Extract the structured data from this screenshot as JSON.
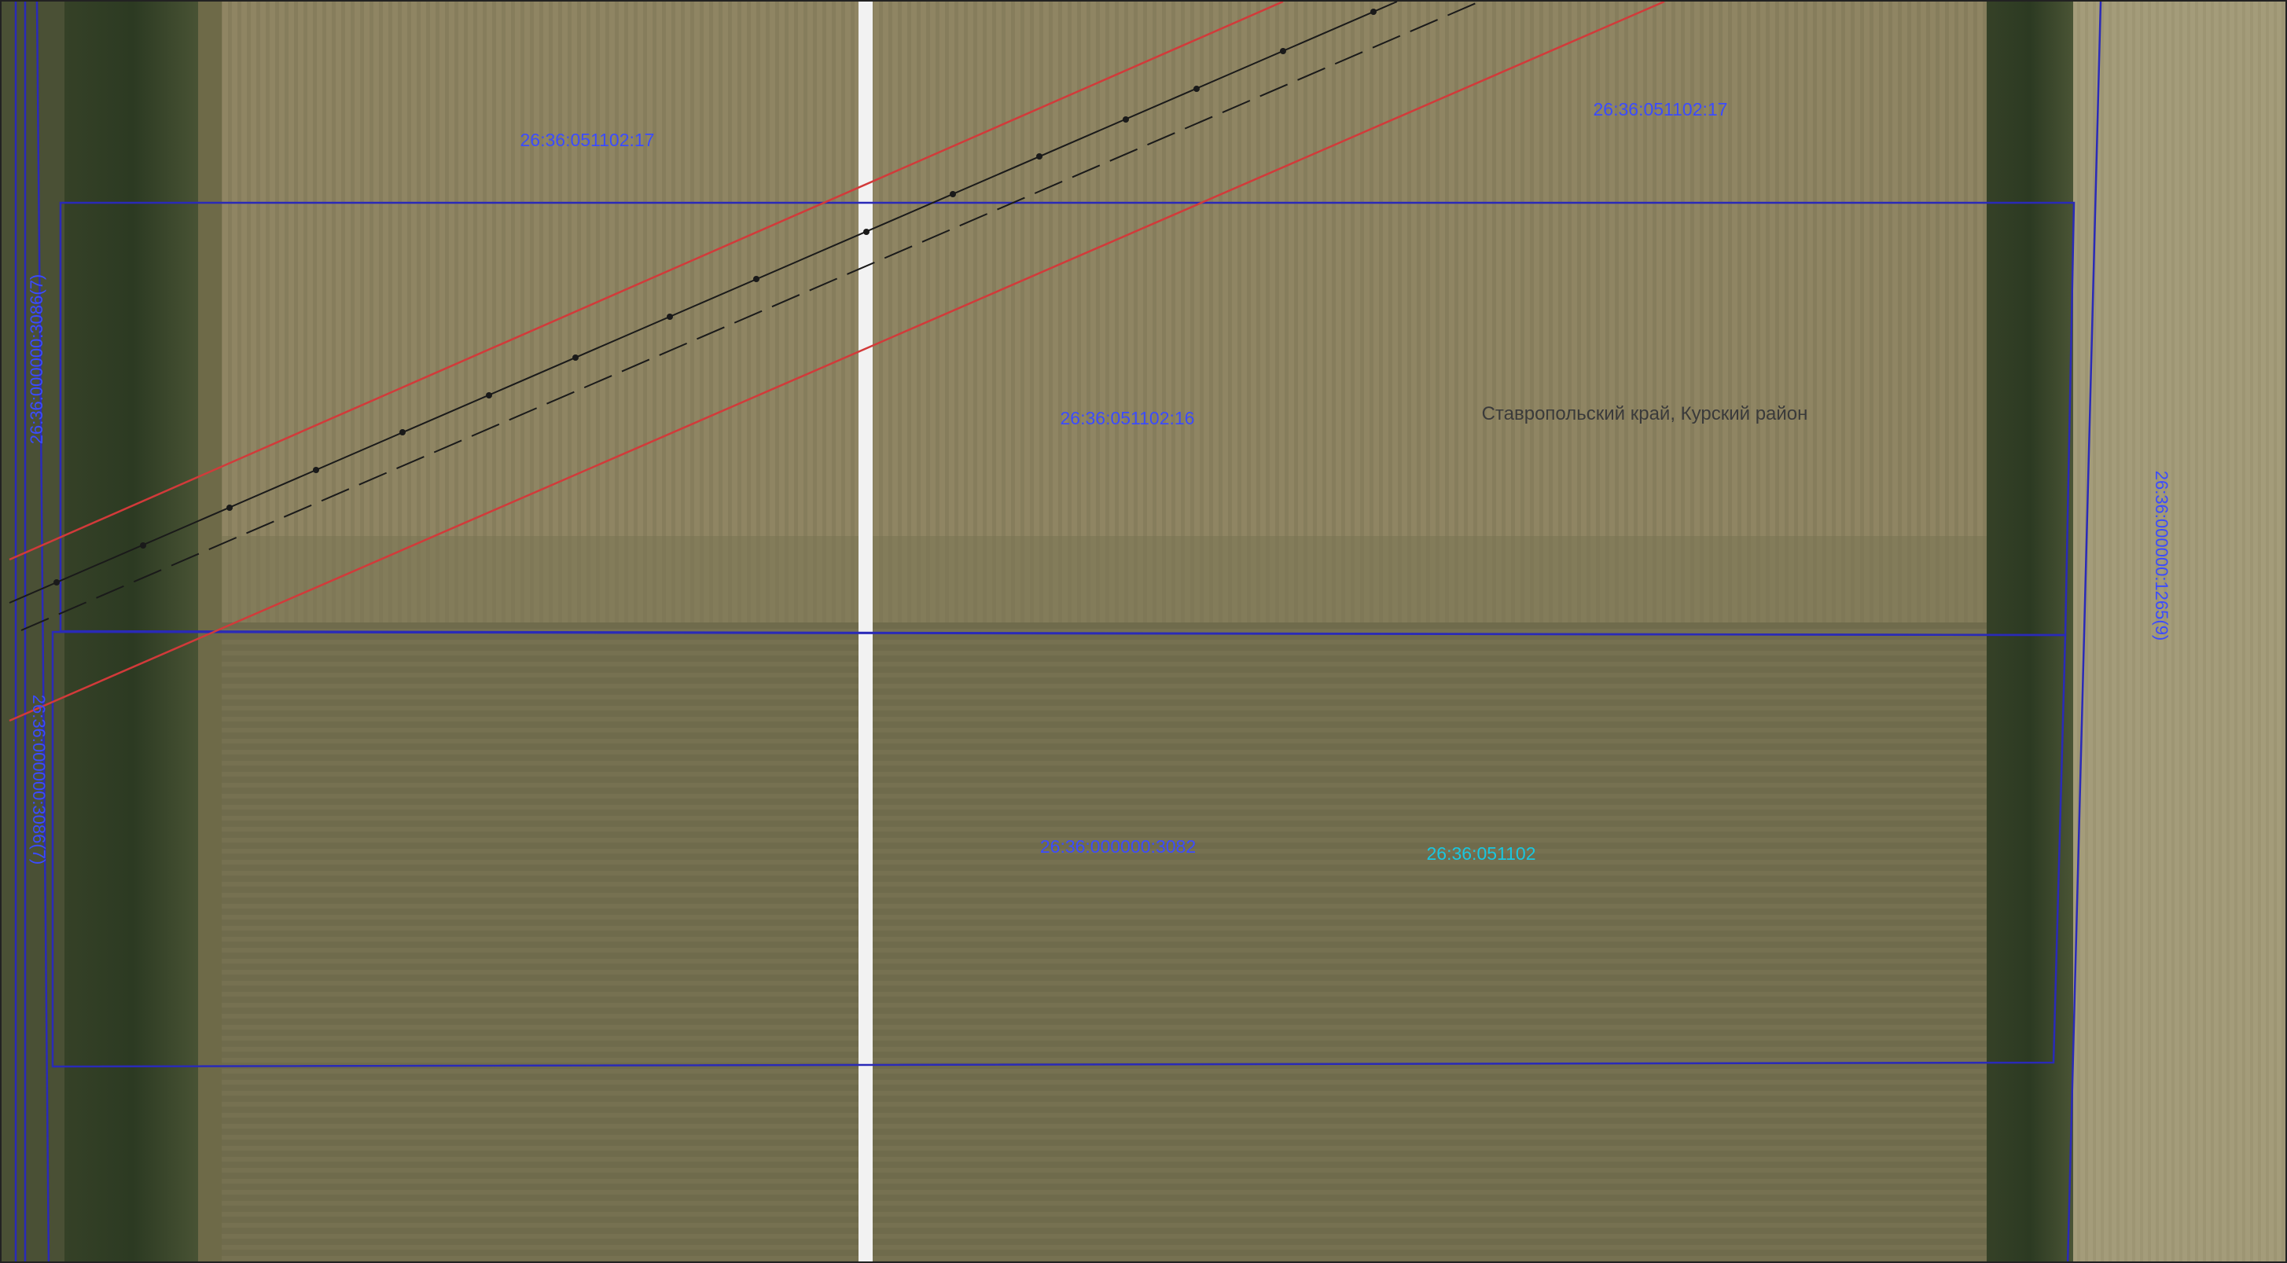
{
  "map": {
    "labels": {
      "parcel_top_left": "26:36:051102:17",
      "parcel_top_right": "26:36:051102:17",
      "parcel_center": "26:36:051102:16",
      "region_name": "Ставропольский край, Курский район",
      "parcel_lower": "26:36:000000:3082",
      "quarter": "26:36:051102",
      "left_vertical_top": "26:36:000000:3086(7)",
      "left_vertical_bottom": "26:36:000000:3086(7)",
      "right_vertical": "26:36:000000:1265(9)"
    },
    "colors": {
      "parcel_boundary": "#2a2ab8",
      "parcel_label": "#3b4bff",
      "quarter_label": "#19c6e0",
      "zone_line": "#d23a3a",
      "power_line": "#1a1a1a",
      "region_text": "#3a3a3a",
      "road": "#f2f2f2"
    },
    "layers": [
      "satellite-imagery",
      "cadastral-parcels",
      "protection-zone",
      "power-line"
    ]
  }
}
